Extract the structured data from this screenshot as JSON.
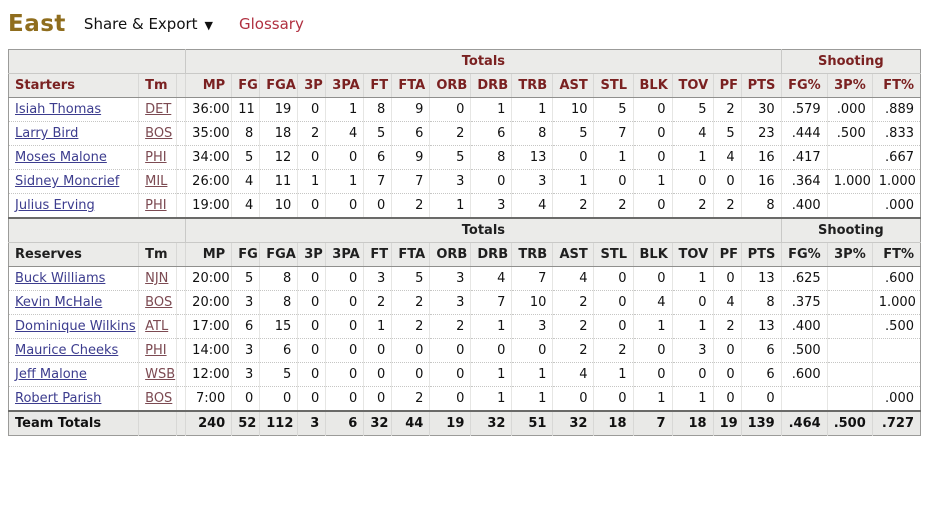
{
  "header": {
    "title": "East",
    "share_export_label": "Share & Export",
    "caret": "▼",
    "glossary_label": "Glossary"
  },
  "colors": {
    "title": "#8f6d1d",
    "glossary_link": "#b03040",
    "starters_header_text": "#7a2121",
    "reserves_header_text": "#1f1f1f",
    "player_link": "#3c3c8e",
    "team_link": "#7c4a52",
    "header_bg": "#ebebe9",
    "totals_row_bg": "#e9e9e7"
  },
  "table": {
    "group_headers": {
      "blank": "",
      "totals": "Totals",
      "shooting": "Shooting"
    },
    "tm_label": "Tm",
    "columns": [
      "MP",
      "FG",
      "FGA",
      "3P",
      "3PA",
      "FT",
      "FTA",
      "ORB",
      "DRB",
      "TRB",
      "AST",
      "STL",
      "BLK",
      "TOV",
      "PF",
      "PTS",
      "FG%",
      "3P%",
      "FT%"
    ],
    "starters": {
      "label": "Starters",
      "rows": [
        {
          "player": "Isiah Thomas",
          "tm": "DET",
          "stats": [
            "36:00",
            "11",
            "19",
            "0",
            "1",
            "8",
            "9",
            "0",
            "1",
            "1",
            "10",
            "5",
            "0",
            "5",
            "2",
            "30",
            ".579",
            ".000",
            ".889"
          ]
        },
        {
          "player": "Larry Bird",
          "tm": "BOS",
          "stats": [
            "35:00",
            "8",
            "18",
            "2",
            "4",
            "5",
            "6",
            "2",
            "6",
            "8",
            "5",
            "7",
            "0",
            "4",
            "5",
            "23",
            ".444",
            ".500",
            ".833"
          ]
        },
        {
          "player": "Moses Malone",
          "tm": "PHI",
          "stats": [
            "34:00",
            "5",
            "12",
            "0",
            "0",
            "6",
            "9",
            "5",
            "8",
            "13",
            "0",
            "1",
            "0",
            "1",
            "4",
            "16",
            ".417",
            "",
            ".667"
          ]
        },
        {
          "player": "Sidney Moncrief",
          "tm": "MIL",
          "stats": [
            "26:00",
            "4",
            "11",
            "1",
            "1",
            "7",
            "7",
            "3",
            "0",
            "3",
            "1",
            "0",
            "1",
            "0",
            "0",
            "16",
            ".364",
            "1.000",
            "1.000"
          ]
        },
        {
          "player": "Julius Erving",
          "tm": "PHI",
          "stats": [
            "19:00",
            "4",
            "10",
            "0",
            "0",
            "0",
            "2",
            "1",
            "3",
            "4",
            "2",
            "2",
            "0",
            "2",
            "2",
            "8",
            ".400",
            "",
            ".000"
          ]
        }
      ]
    },
    "reserves": {
      "label": "Reserves",
      "rows": [
        {
          "player": "Buck Williams",
          "tm": "NJN",
          "stats": [
            "20:00",
            "5",
            "8",
            "0",
            "0",
            "3",
            "5",
            "3",
            "4",
            "7",
            "4",
            "0",
            "0",
            "1",
            "0",
            "13",
            ".625",
            "",
            ".600"
          ]
        },
        {
          "player": "Kevin McHale",
          "tm": "BOS",
          "stats": [
            "20:00",
            "3",
            "8",
            "0",
            "0",
            "2",
            "2",
            "3",
            "7",
            "10",
            "2",
            "0",
            "4",
            "0",
            "4",
            "8",
            ".375",
            "",
            "1.000"
          ]
        },
        {
          "player": "Dominique Wilkins",
          "tm": "ATL",
          "stats": [
            "17:00",
            "6",
            "15",
            "0",
            "0",
            "1",
            "2",
            "2",
            "1",
            "3",
            "2",
            "0",
            "1",
            "1",
            "2",
            "13",
            ".400",
            "",
            ".500"
          ]
        },
        {
          "player": "Maurice Cheeks",
          "tm": "PHI",
          "stats": [
            "14:00",
            "3",
            "6",
            "0",
            "0",
            "0",
            "0",
            "0",
            "0",
            "0",
            "2",
            "2",
            "0",
            "3",
            "0",
            "6",
            ".500",
            "",
            ""
          ]
        },
        {
          "player": "Jeff Malone",
          "tm": "WSB",
          "stats": [
            "12:00",
            "3",
            "5",
            "0",
            "0",
            "0",
            "0",
            "0",
            "1",
            "1",
            "4",
            "1",
            "0",
            "0",
            "0",
            "6",
            ".600",
            "",
            ""
          ]
        },
        {
          "player": "Robert Parish",
          "tm": "BOS",
          "stats": [
            "7:00",
            "0",
            "0",
            "0",
            "0",
            "0",
            "2",
            "0",
            "1",
            "1",
            "0",
            "0",
            "1",
            "1",
            "0",
            "0",
            "",
            "",
            ".000"
          ]
        }
      ]
    },
    "team_totals": {
      "label": "Team Totals",
      "stats": [
        "240",
        "52",
        "112",
        "3",
        "6",
        "32",
        "44",
        "19",
        "32",
        "51",
        "32",
        "18",
        "7",
        "18",
        "19",
        "139",
        ".464",
        ".500",
        ".727"
      ]
    }
  }
}
